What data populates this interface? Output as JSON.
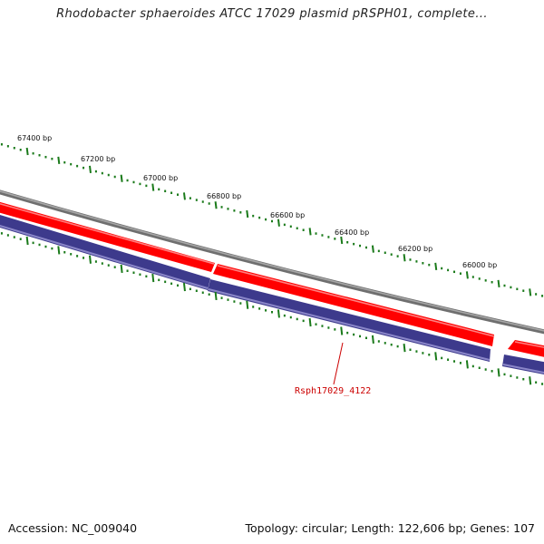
{
  "title": "Rhodobacter sphaeroides ATCC 17029 plasmid pRSPH01, complete...",
  "footer": {
    "accession": "Accession: NC_009040",
    "summary": "Topology: circular; Length: 122,606 bp; Genes: 107"
  },
  "ruler": {
    "labels": [
      "67400 bp",
      "67200 bp",
      "67000 bp",
      "66800 bp",
      "66600 bp",
      "66400 bp",
      "66200 bp",
      "66000 bp"
    ]
  },
  "genes": {
    "highlighted_label": "Rsph17029_4122"
  },
  "colors": {
    "backbone": "#808080",
    "forward_gene": "#ff0000",
    "forward_gene_light": "#ff7a7a",
    "reverse_gene": "#3d3a8c",
    "reverse_gene_light": "#8a86c8",
    "ticks": "#1a7a1a",
    "gene_label": "#cc0000"
  }
}
